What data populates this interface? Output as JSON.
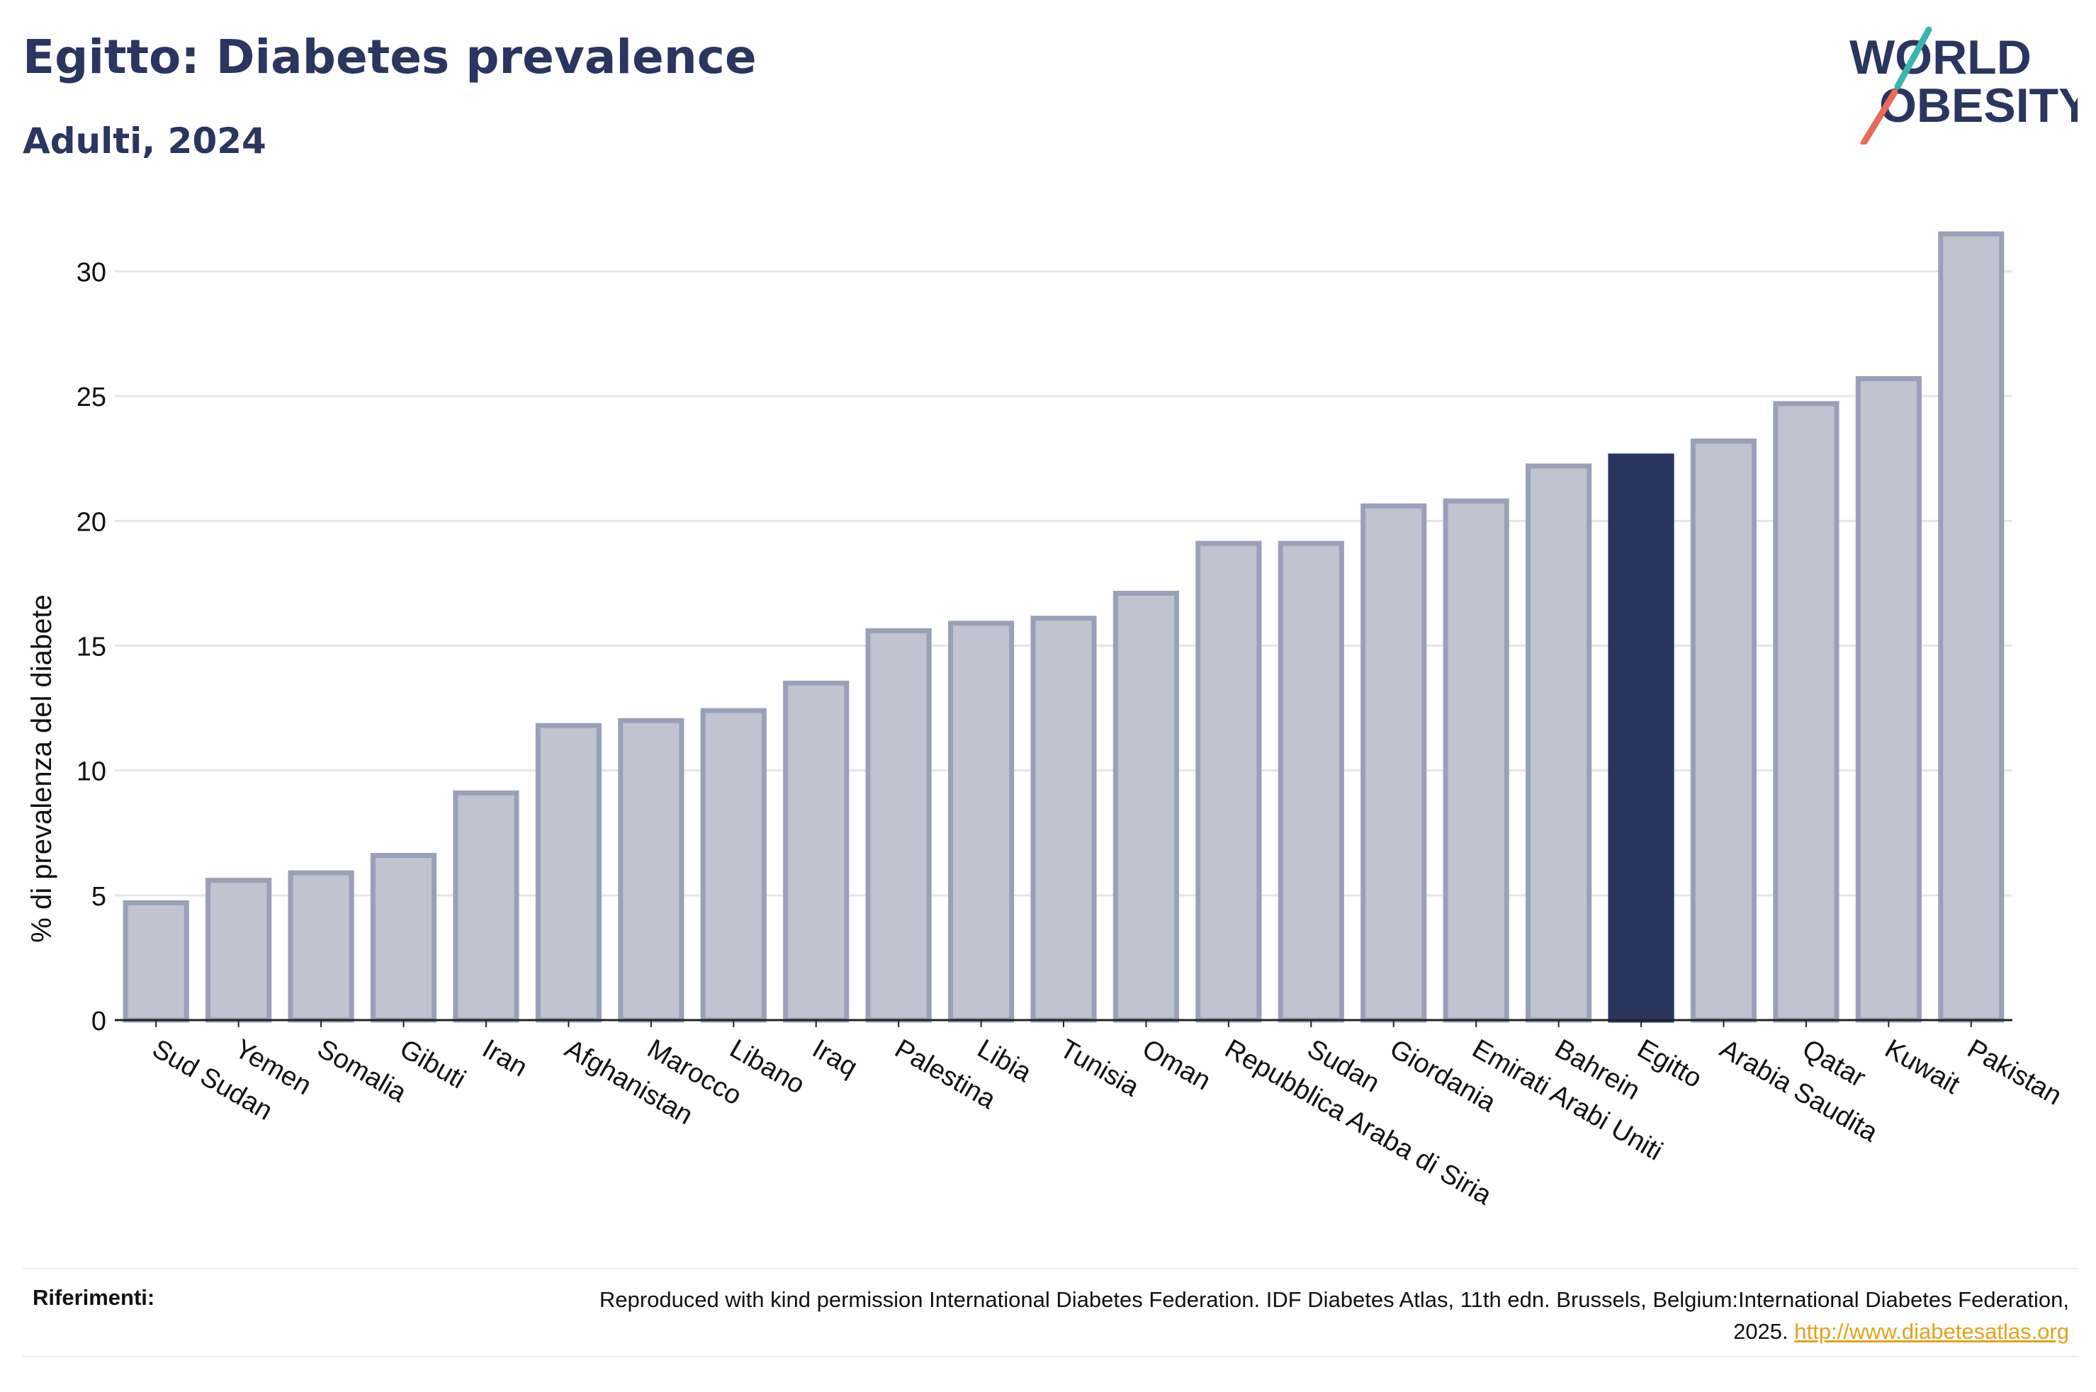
{
  "header": {
    "title": "Egitto: Diabetes prevalence",
    "subtitle": "Adulti, 2024"
  },
  "logo": {
    "line1": "WORLD",
    "line2": "OBESITY"
  },
  "footer": {
    "label": "Riferimenti:",
    "text": "Reproduced with kind permission International Diabetes Federation. IDF Diabetes Atlas, 11th edn. Brussels, Belgium:International Diabetes Federation, 2025.",
    "link": "http://www.diabetesatlas.org"
  },
  "colors": {
    "highlight": "#2a3560",
    "bar_fill": "#c0c3d0",
    "bar_stroke": "#9aa0b8",
    "text": "#2a3560"
  },
  "chart_data": {
    "type": "bar",
    "title": "Egitto: Diabetes prevalence",
    "subtitle": "Adulti, 2024",
    "xlabel": "",
    "ylabel": "% di prevalenza del diabete",
    "ylim": [
      0,
      32
    ],
    "yticks": [
      0,
      5,
      10,
      15,
      20,
      25,
      30
    ],
    "grid": true,
    "highlight": "Egitto",
    "categories": [
      "Sud Sudan",
      "Yemen",
      "Somalia",
      "Gibuti",
      "Iran",
      "Afghanistan",
      "Marocco",
      "Libano",
      "Iraq",
      "Palestina",
      "Libia",
      "Tunisia",
      "Oman",
      "Repubblica Araba di Siria",
      "Sudan",
      "Giordania",
      "Emirati Arabi Uniti",
      "Bahrein",
      "Egitto",
      "Arabia Saudita",
      "Qatar",
      "Kuwait",
      "Pakistan"
    ],
    "values": [
      4.7,
      5.6,
      5.9,
      6.6,
      9.1,
      11.8,
      12.0,
      12.4,
      13.5,
      15.6,
      15.9,
      16.1,
      17.1,
      19.1,
      19.1,
      20.6,
      20.8,
      22.2,
      22.6,
      23.2,
      24.7,
      25.7,
      31.5
    ]
  }
}
